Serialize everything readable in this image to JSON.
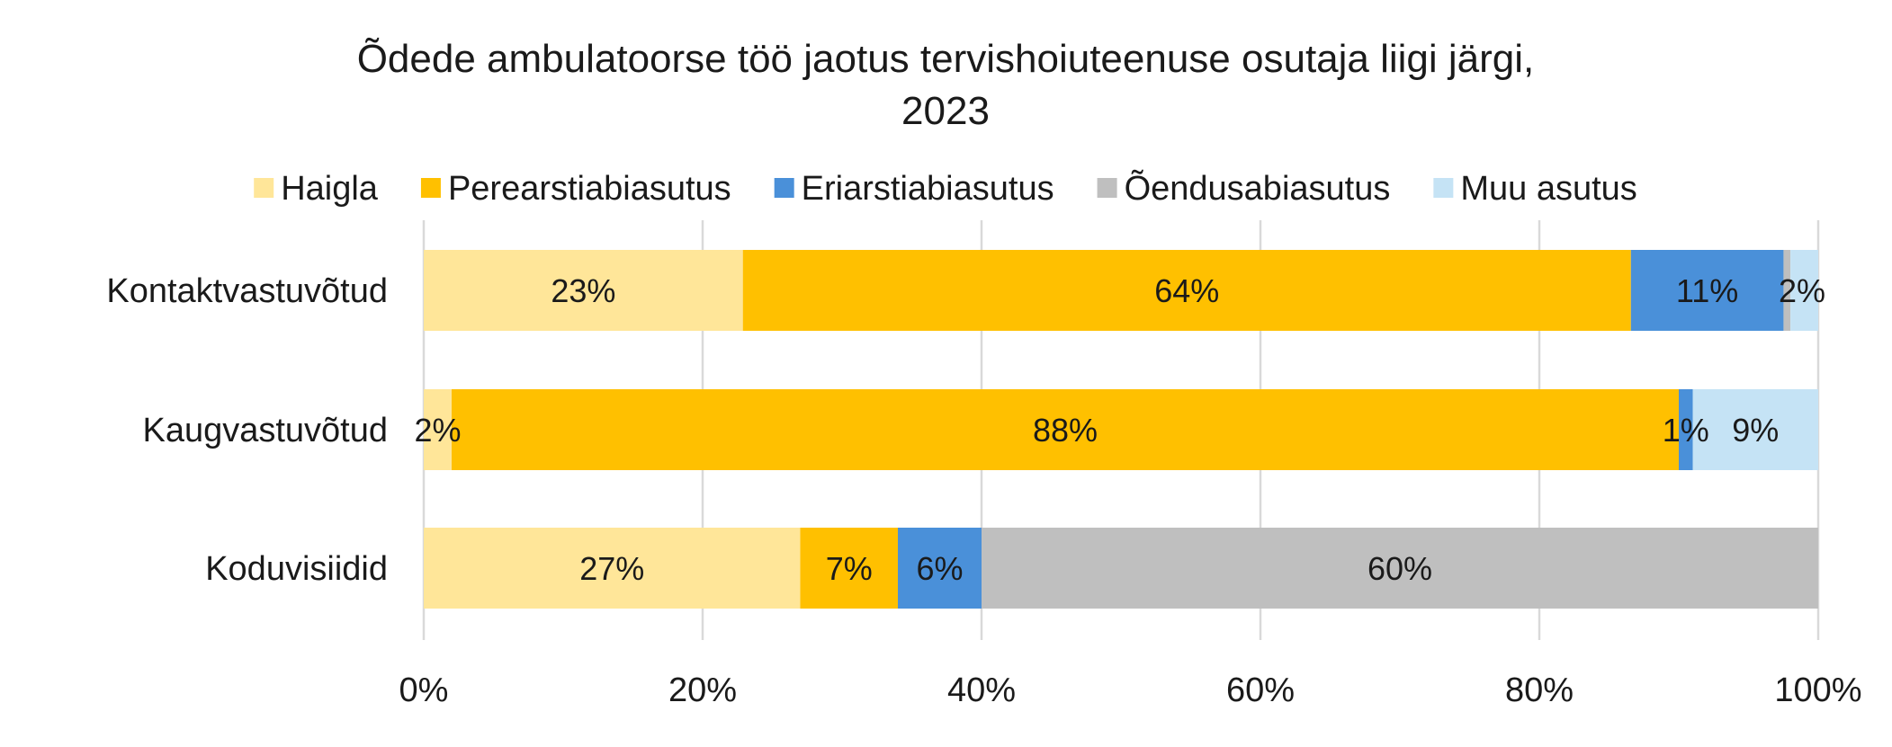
{
  "chart_data": {
    "type": "bar",
    "orientation": "horizontal",
    "stacked": "percent",
    "title_line1": "Õdede ambulatoorse töö jaotus tervishoiuteenuse osutaja liigi järgi,",
    "title_line2": "2023",
    "categories": [
      "Kontaktvastuvõtud",
      "Kaugvastuvõtud",
      "Koduvisiidid"
    ],
    "series": [
      {
        "name": "Haigla",
        "color": "#FFE699",
        "values": [
          23,
          2,
          27
        ],
        "labels": [
          "23%",
          "2%",
          "27%"
        ]
      },
      {
        "name": "Perearstiabiasutus",
        "color": "#FFC000",
        "values": [
          64,
          88,
          7
        ],
        "labels": [
          "64%",
          "88%",
          "7%"
        ]
      },
      {
        "name": "Eriarstiabiasutus",
        "color": "#4A90D9",
        "values": [
          11,
          1,
          6
        ],
        "labels": [
          "11%",
          "1%",
          "6%"
        ]
      },
      {
        "name": "Õendusabiasutus",
        "color": "#BFBFBF",
        "values": [
          0.5,
          0,
          60
        ],
        "labels": [
          "",
          "",
          "60%"
        ]
      },
      {
        "name": "Muu asutus",
        "color": "#C5E3F5",
        "values": [
          2,
          9,
          0
        ],
        "labels": [
          "2%",
          "9%",
          ""
        ]
      }
    ],
    "xlim": [
      0,
      100
    ],
    "xticks": [
      0,
      20,
      40,
      60,
      80,
      100
    ],
    "xtick_labels": [
      "0%",
      "20%",
      "40%",
      "60%",
      "80%",
      "100%"
    ],
    "grid": true,
    "legend_position": "top"
  }
}
